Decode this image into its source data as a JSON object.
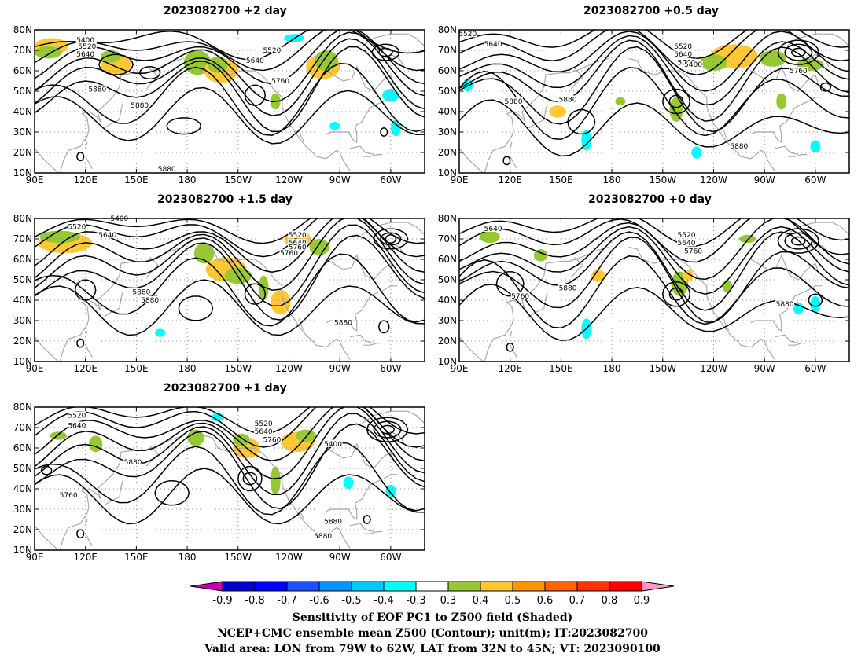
{
  "panels": [
    {
      "id": "p1",
      "title": "2023082700 +2 day"
    },
    {
      "id": "p2",
      "title": "2023082700 +0.5 day"
    },
    {
      "id": "p3",
      "title": "2023082700 +1.5 day"
    },
    {
      "id": "p4",
      "title": "2023082700 +0 day"
    },
    {
      "id": "p5",
      "title": "2023082700 +1 day"
    }
  ],
  "lat_ticks": [
    "80N",
    "70N",
    "60N",
    "50N",
    "40N",
    "30N",
    "20N",
    "10N"
  ],
  "lon_ticks": [
    "90E",
    "120E",
    "150E",
    "180",
    "150W",
    "120W",
    "90W",
    "60W"
  ],
  "lat_range": [
    10,
    80
  ],
  "lon_range_east": [
    90,
    320
  ],
  "contour_labels": {
    "p1": [
      "5400",
      "5520",
      "5640",
      "5640",
      "5520",
      "5760",
      "5880",
      "5880",
      "5880"
    ],
    "p2": [
      "5520",
      "5640",
      "5520",
      "5640",
      "5760",
      "5400",
      "5760",
      "5880",
      "5880",
      "5880"
    ],
    "p3": [
      "5400",
      "5520",
      "5640",
      "5520",
      "5640",
      "5760",
      "5760",
      "5880",
      "5880",
      "5880"
    ],
    "p4": [
      "5640",
      "5520",
      "5640",
      "5760",
      "5760",
      "5880",
      "5880"
    ],
    "p5": [
      "5520",
      "5640",
      "5520",
      "5640",
      "5760",
      "5400",
      "5880",
      "5760",
      "5880",
      "5880"
    ]
  },
  "colorbar": {
    "labels": [
      "-0.9",
      "-0.8",
      "-0.7",
      "-0.6",
      "-0.5",
      "-0.4",
      "-0.3",
      "0.3",
      "0.4",
      "0.5",
      "0.6",
      "0.7",
      "0.8",
      "0.9"
    ],
    "colors": [
      "#c800b4",
      "#0000c8",
      "#0000ff",
      "#1e50ff",
      "#0096ff",
      "#00c8ff",
      "#00ffff",
      "#ffffff",
      "#96c832",
      "#ffc832",
      "#ff9600",
      "#ff6400",
      "#ff3200",
      "#ff0000",
      "#ff96c8"
    ]
  },
  "footer": {
    "line1": "Sensitivity of EOF PC1 to Z500 field (Shaded)",
    "line2": "NCEP+CMC ensemble mean Z500 (Contour); unit(m); IT:2023082700",
    "line3": "Valid area: LON from 79W to 62W, LAT from 32N to 45N; VT: 2023090100"
  }
}
